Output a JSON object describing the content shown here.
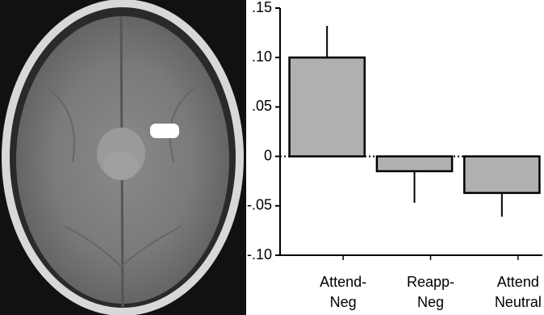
{
  "chart_data": {
    "type": "bar",
    "categories": [
      [
        "Attend-",
        "Neg"
      ],
      [
        "Reapp-",
        "Neg"
      ],
      [
        "Attend",
        "Neutral"
      ]
    ],
    "values": [
      0.1,
      -0.015,
      -0.037
    ],
    "errors": [
      0.032,
      0.032,
      0.024
    ],
    "color": "#b0b0b0",
    "ylim": [
      -0.1,
      0.15
    ],
    "yticks": [
      {
        "value": -0.1,
        "label": "-.10"
      },
      {
        "value": -0.05,
        "label": "-.05"
      },
      0,
      {
        "value": 0.05,
        "label": ".05"
      },
      {
        "value": 0.1,
        "label": ".10"
      },
      {
        "value": 0.15,
        "label": ".15"
      }
    ]
  }
}
